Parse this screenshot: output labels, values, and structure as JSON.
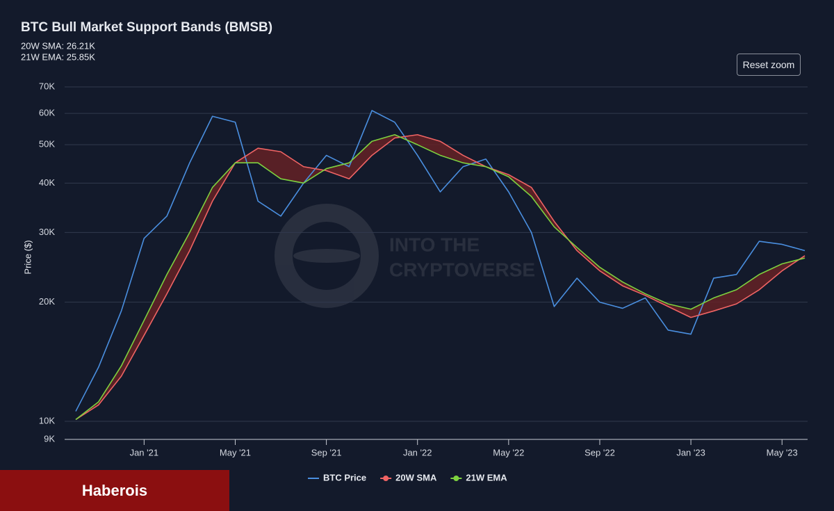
{
  "chart_data": {
    "type": "line",
    "title": "BTC Bull Market Support Bands (BMSB)",
    "subtitle_lines": [
      "20W SMA: 26.21K",
      "21W EMA: 25.85K"
    ],
    "y_label": "Price ($)",
    "reset_button": "Reset zoom",
    "watermark": [
      "INTO THE",
      "CRYPTOVERSE"
    ],
    "brand": "Haberois",
    "log_y": true,
    "grid": true,
    "band_color": "#6a2226",
    "x": [
      "2020-10",
      "2020-11",
      "2020-12",
      "2021-01",
      "2021-02",
      "2021-03",
      "2021-04",
      "2021-05",
      "2021-06",
      "2021-07",
      "2021-08",
      "2021-09",
      "2021-10",
      "2021-11",
      "2021-12",
      "2022-01",
      "2022-02",
      "2022-03",
      "2022-04",
      "2022-05",
      "2022-06",
      "2022-07",
      "2022-08",
      "2022-09",
      "2022-10",
      "2022-11",
      "2022-12",
      "2023-01",
      "2023-02",
      "2023-03",
      "2023-04",
      "2023-05",
      "2023-06"
    ],
    "xlim": [
      "2020-10",
      "2023-06"
    ],
    "xticks": [
      {
        "value": "2021-01",
        "label": "Jan '21"
      },
      {
        "value": "2021-05",
        "label": "May '21"
      },
      {
        "value": "2021-09",
        "label": "Sep '21"
      },
      {
        "value": "2022-01",
        "label": "Jan '22"
      },
      {
        "value": "2022-05",
        "label": "May '22"
      },
      {
        "value": "2022-09",
        "label": "Sep '22"
      },
      {
        "value": "2023-01",
        "label": "Jan '23"
      },
      {
        "value": "2023-05",
        "label": "May '23"
      }
    ],
    "ylim": [
      9000,
      70000
    ],
    "yticks": [
      {
        "value": 9000,
        "label": "9K"
      },
      {
        "value": 10000,
        "label": "10K"
      },
      {
        "value": 20000,
        "label": "20K"
      },
      {
        "value": 30000,
        "label": "30K"
      },
      {
        "value": 40000,
        "label": "40K"
      },
      {
        "value": 50000,
        "label": "50K"
      },
      {
        "value": 60000,
        "label": "60K"
      },
      {
        "value": 70000,
        "label": "70K"
      }
    ],
    "series": [
      {
        "name": "BTC Price",
        "color": "#4a8fe0",
        "marker": false,
        "values": [
          10600,
          13700,
          19000,
          29000,
          33000,
          45000,
          59000,
          57000,
          36000,
          33000,
          40000,
          47000,
          44000,
          61000,
          57000,
          47000,
          38000,
          44000,
          46000,
          38000,
          30000,
          19500,
          23000,
          20000,
          19300,
          20500,
          17000,
          16600,
          23000,
          23500,
          28500,
          28000,
          27000
        ]
      },
      {
        "name": "20W SMA",
        "color": "#f06464",
        "marker": true,
        "values": [
          10100,
          11000,
          13000,
          16500,
          21000,
          27000,
          36000,
          45000,
          49000,
          48000,
          44000,
          43000,
          41000,
          47000,
          52000,
          53000,
          51000,
          47000,
          44000,
          42000,
          39000,
          32000,
          27000,
          24000,
          22000,
          20800,
          19500,
          18300,
          19000,
          19800,
          21500,
          24000,
          26210
        ]
      },
      {
        "name": "21W EMA",
        "color": "#7ed23f",
        "marker": true,
        "values": [
          10100,
          11200,
          13800,
          18000,
          23500,
          30000,
          39000,
          45000,
          45000,
          41000,
          40000,
          43500,
          45000,
          51000,
          53000,
          50000,
          47000,
          45000,
          44000,
          41500,
          37000,
          31000,
          27500,
          24500,
          22500,
          21000,
          19800,
          19200,
          20500,
          21500,
          23500,
          25000,
          25850
        ]
      }
    ]
  }
}
